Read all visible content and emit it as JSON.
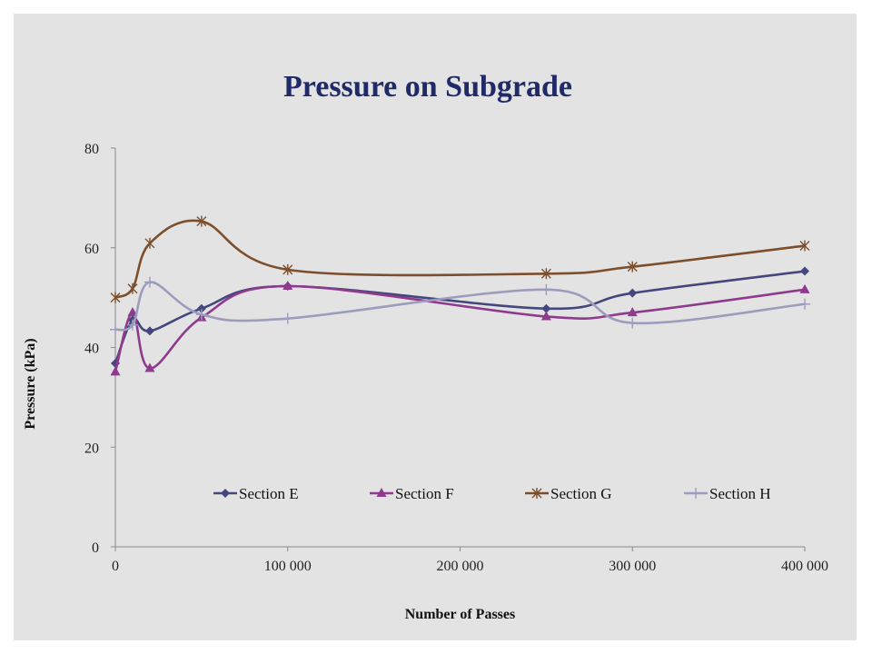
{
  "chart_data": {
    "type": "line",
    "title": "Pressure on Subgrade",
    "xlabel": "Number of Passes",
    "ylabel": "Pressure (kPa)",
    "xlim": [
      0,
      400000
    ],
    "ylim": [
      0,
      80
    ],
    "xticks": [
      0,
      100000,
      200000,
      300000,
      400000
    ],
    "xtick_labels": [
      "0",
      "100 000",
      "200 000",
      "300 000",
      "400 000"
    ],
    "yticks": [
      0,
      20,
      40,
      60,
      80
    ],
    "ytick_labels": [
      "0",
      "20",
      "40",
      "60",
      "80"
    ],
    "grid": false,
    "smooth": true,
    "legend_position": "inside-bottom",
    "series": [
      {
        "name": "Section E",
        "color": "#44477d",
        "marker": "diamond",
        "x": [
          0,
          10000,
          20000,
          50000,
          100000,
          250000,
          300000,
          400000
        ],
        "y": [
          36.8,
          45.5,
          43.3,
          47.8,
          52.3,
          47.8,
          50.9,
          55.3
        ]
      },
      {
        "name": "Section F",
        "color": "#8e3b8e",
        "marker": "triangle",
        "x": [
          0,
          10000,
          20000,
          50000,
          100000,
          250000,
          300000,
          400000
        ],
        "y": [
          35.1,
          47.0,
          35.8,
          46.0,
          52.3,
          46.2,
          47.0,
          51.6
        ]
      },
      {
        "name": "Section G",
        "color": "#7d4e2c",
        "marker": "star",
        "x": [
          0,
          10000,
          20000,
          50000,
          100000,
          250000,
          300000,
          400000
        ],
        "y": [
          50.0,
          51.8,
          60.9,
          65.3,
          55.6,
          54.8,
          56.2,
          60.4
        ]
      },
      {
        "name": "Section H",
        "color": "#9c9cbd",
        "marker": "plus",
        "x": [
          0,
          10000,
          20000,
          50000,
          100000,
          250000,
          300000,
          400000
        ],
        "y": [
          43.6,
          44.5,
          53.1,
          46.6,
          45.8,
          51.6,
          44.9,
          48.7
        ]
      }
    ]
  }
}
